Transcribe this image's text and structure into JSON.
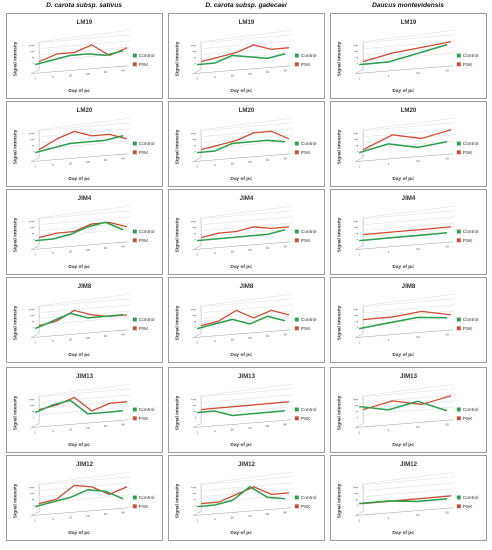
{
  "columns": [
    "D. carota subsp. sativus",
    "D. carota subsp. gadecaei",
    "Daucus montevidensis"
  ],
  "colors": {
    "control": "#2e9e4f",
    "psk": "#d04a2e"
  },
  "chart_data": [
    {
      "type": "line",
      "column": "D. carota subsp. sativus",
      "title": "LM19",
      "xlabel": "Day of pc",
      "ylabel": "Signal intensity",
      "y_ticks": [
        "****",
        "***",
        "**",
        "*"
      ],
      "x": [
        "1",
        "4",
        "10",
        "20",
        "30",
        "40"
      ],
      "ylim": [
        0,
        4
      ],
      "legend": "right",
      "series": [
        {
          "name": "Control",
          "values": [
            1,
            1.5,
            2,
            2,
            1.5,
            2
          ]
        },
        {
          "name": "PSK",
          "values": [
            1,
            2,
            2,
            3,
            1,
            2
          ]
        }
      ]
    },
    {
      "type": "line",
      "column": "D. carota subsp. gadecaei",
      "title": "LM19",
      "xlabel": "Day of pc",
      "ylabel": "Signal intensity",
      "y_ticks": [
        "****",
        "***",
        "**",
        "*"
      ],
      "x": [
        "1",
        "4",
        "10",
        "20",
        "30",
        "40"
      ],
      "ylim": [
        0,
        4
      ],
      "legend": "right",
      "series": [
        {
          "name": "Control",
          "values": [
            1,
            1,
            2,
            1.5,
            1,
            1.5
          ]
        },
        {
          "name": "PSK",
          "values": [
            1,
            1.5,
            2,
            3,
            2,
            2
          ]
        }
      ]
    },
    {
      "type": "line",
      "column": "Daucus montevidensis",
      "title": "LM19",
      "xlabel": "Day of pc",
      "ylabel": "Signal intensity",
      "y_ticks": [
        "****",
        "***",
        "**",
        "*"
      ],
      "x": [
        "1",
        "4",
        "10",
        "20"
      ],
      "ylim": [
        0,
        4
      ],
      "legend": "right",
      "series": [
        {
          "name": "Control",
          "values": [
            1,
            1,
            2,
            3
          ]
        },
        {
          "name": "PSK",
          "values": [
            1,
            2,
            2.5,
            3
          ]
        }
      ]
    },
    {
      "type": "line",
      "column": "D. carota subsp. sativus",
      "title": "LM20",
      "xlabel": "Day of pc",
      "ylabel": "Signal intensity",
      "y_ticks": [
        "****",
        "***",
        "**",
        "*"
      ],
      "x": [
        "1",
        "4",
        "10",
        "20",
        "30",
        "40"
      ],
      "ylim": [
        0,
        4
      ],
      "legend": "right",
      "series": [
        {
          "name": "Control",
          "values": [
            1,
            1.5,
            2,
            2,
            2,
            2.5
          ]
        },
        {
          "name": "PSK",
          "values": [
            1,
            2.5,
            3.5,
            2.5,
            2.5,
            1.5
          ]
        }
      ]
    },
    {
      "type": "line",
      "column": "D. carota subsp. gadecaei",
      "title": "LM20",
      "xlabel": "Day of pc",
      "ylabel": "Signal intensity",
      "y_ticks": [
        "****",
        "***",
        "**",
        "*"
      ],
      "x": [
        "1",
        "4",
        "10",
        "20",
        "30",
        "40"
      ],
      "ylim": [
        0,
        4
      ],
      "legend": "right",
      "series": [
        {
          "name": "Control",
          "values": [
            1,
            1,
            2,
            2,
            2,
            1.5
          ]
        },
        {
          "name": "PSK",
          "values": [
            1,
            1.5,
            2,
            3,
            3,
            1.5
          ]
        }
      ]
    },
    {
      "type": "line",
      "column": "Daucus montevidensis",
      "title": "LM20",
      "xlabel": "Day of pc",
      "ylabel": "Signal intensity",
      "y_ticks": [
        "****",
        "***",
        "**",
        "*"
      ],
      "x": [
        "1",
        "4",
        "10",
        "20"
      ],
      "ylim": [
        0,
        4
      ],
      "legend": "right",
      "series": [
        {
          "name": "Control",
          "values": [
            1,
            2,
            1,
            1.5
          ]
        },
        {
          "name": "PSK",
          "values": [
            1,
            3,
            2,
            3
          ]
        }
      ]
    },
    {
      "type": "line",
      "column": "D. carota subsp. sativus",
      "title": "JIM4",
      "xlabel": "Day of pc",
      "ylabel": "Signal intensity",
      "y_ticks": [
        "****",
        "***",
        "**",
        "*"
      ],
      "x": [
        "1",
        "4",
        "10",
        "20",
        "30",
        "40"
      ],
      "ylim": [
        0,
        4
      ],
      "legend": "right",
      "series": [
        {
          "name": "Control",
          "values": [
            1,
            1,
            1.5,
            2.5,
            3,
            1.5
          ]
        },
        {
          "name": "PSK",
          "values": [
            1,
            1.5,
            1.5,
            2.5,
            2.5,
            1.5
          ]
        }
      ]
    },
    {
      "type": "line",
      "column": "D. carota subsp. gadecaei",
      "title": "JIM4",
      "xlabel": "Day of pc",
      "ylabel": "Signal intensity",
      "y_ticks": [
        "****",
        "***",
        "**",
        "*"
      ],
      "x": [
        "1",
        "4",
        "10",
        "20",
        "30",
        "40"
      ],
      "ylim": [
        0,
        4
      ],
      "legend": "right",
      "series": [
        {
          "name": "Control",
          "values": [
            1,
            1,
            1,
            1,
            1,
            1.5
          ]
        },
        {
          "name": "PSK",
          "values": [
            1,
            1.5,
            1.5,
            2,
            1.5,
            1.5
          ]
        }
      ]
    },
    {
      "type": "line",
      "column": "Daucus montevidensis",
      "title": "JIM4",
      "xlabel": "Day of pc",
      "ylabel": "Signal intensity",
      "y_ticks": [
        "****",
        "***",
        "**",
        "*"
      ],
      "x": [
        "1",
        "4",
        "10",
        "20"
      ],
      "ylim": [
        0,
        4
      ],
      "legend": "right",
      "series": [
        {
          "name": "Control",
          "values": [
            1,
            1,
            1,
            1
          ]
        },
        {
          "name": "PSK",
          "values": [
            1.5,
            1.5,
            1.5,
            1.5
          ]
        }
      ]
    },
    {
      "type": "line",
      "column": "D. carota subsp. sativus",
      "title": "JIM8",
      "xlabel": "Day of pc",
      "ylabel": "Signal intensity",
      "y_ticks": [
        "****",
        "***",
        "**",
        "*"
      ],
      "x": [
        "1",
        "4",
        "10",
        "20",
        "30",
        "40"
      ],
      "ylim": [
        0,
        4
      ],
      "legend": "right",
      "series": [
        {
          "name": "Control",
          "values": [
            1,
            2,
            3,
            2,
            2,
            2
          ]
        },
        {
          "name": "PSK",
          "values": [
            1,
            1.5,
            3,
            2,
            1.5,
            1.5
          ]
        }
      ]
    },
    {
      "type": "line",
      "column": "D. carota subsp. gadecaei",
      "title": "JIM8",
      "xlabel": "Day of pc",
      "ylabel": "Signal intensity",
      "y_ticks": [
        "****",
        "***",
        "**",
        "*"
      ],
      "x": [
        "1",
        "4",
        "10",
        "20",
        "30",
        "40"
      ],
      "ylim": [
        0,
        4
      ],
      "legend": "right",
      "series": [
        {
          "name": "Control",
          "values": [
            1,
            1.5,
            2,
            1,
            2,
            1
          ]
        },
        {
          "name": "PSK",
          "values": [
            1,
            1.5,
            3,
            1.5,
            2.5,
            1.5
          ]
        }
      ]
    },
    {
      "type": "line",
      "column": "Daucus montevidensis",
      "title": "JIM8",
      "xlabel": "Day of pc",
      "ylabel": "Signal intensity",
      "y_ticks": [
        "****",
        "***",
        "**",
        "*"
      ],
      "x": [
        "1",
        "4",
        "10",
        "20"
      ],
      "ylim": [
        0,
        4
      ],
      "legend": "right",
      "series": [
        {
          "name": "Control",
          "values": [
            1,
            1.5,
            2,
            1.5
          ]
        },
        {
          "name": "PSK",
          "values": [
            2,
            2,
            2.5,
            1.5
          ]
        }
      ]
    },
    {
      "type": "line",
      "column": "D. carota subsp. sativus",
      "title": "JIM13",
      "xlabel": "Day of pc",
      "ylabel": "Signal intensity",
      "y_ticks": [
        "****",
        "***",
        "**",
        "*"
      ],
      "x": [
        "1",
        "4",
        "10",
        "20",
        "30",
        "40"
      ],
      "ylim": [
        0,
        4
      ],
      "legend": "right",
      "series": [
        {
          "name": "Control",
          "values": [
            2,
            3,
            3.5,
            1,
            1,
            1
          ]
        },
        {
          "name": "PSK",
          "values": [
            2,
            2.5,
            3.5,
            1,
            2,
            2
          ]
        }
      ]
    },
    {
      "type": "line",
      "column": "D. carota subsp. gadecaei",
      "title": "JIM13",
      "xlabel": "Day of pc",
      "ylabel": "Signal intensity",
      "y_ticks": [
        "****",
        "***",
        "**",
        "*"
      ],
      "x": [
        "1",
        "4",
        "10",
        "20",
        "30",
        "40"
      ],
      "ylim": [
        0,
        4
      ],
      "legend": "right",
      "series": [
        {
          "name": "Control",
          "values": [
            2,
            2,
            1,
            1,
            1,
            1
          ]
        },
        {
          "name": "PSK",
          "values": [
            2,
            2,
            2,
            2,
            2,
            2
          ]
        }
      ]
    },
    {
      "type": "line",
      "column": "Daucus montevidensis",
      "title": "JIM13",
      "xlabel": "Day of pc",
      "ylabel": "Signal intensity",
      "y_ticks": [
        "****",
        "***",
        "**",
        "*"
      ],
      "x": [
        "1",
        "4",
        "10",
        "20"
      ],
      "ylim": [
        0,
        4
      ],
      "legend": "right",
      "series": [
        {
          "name": "Control",
          "values": [
            3,
            2,
            3,
            1
          ]
        },
        {
          "name": "PSK",
          "values": [
            2,
            3,
            2,
            3
          ]
        }
      ]
    },
    {
      "type": "line",
      "column": "D. carota subsp. sativus",
      "title": "JIM12",
      "xlabel": "Day of pc",
      "ylabel": "Signal intensity",
      "y_ticks": [
        "****",
        "***",
        "**",
        "*"
      ],
      "x": [
        "1",
        "4",
        "10",
        "20",
        "30",
        "40"
      ],
      "ylim": [
        0,
        4
      ],
      "legend": "right",
      "series": [
        {
          "name": "Control",
          "values": [
            1,
            1.5,
            2,
            3,
            2.5,
            1
          ]
        },
        {
          "name": "PSK",
          "values": [
            1,
            1.5,
            3.5,
            3,
            1.5,
            2.5
          ]
        }
      ]
    },
    {
      "type": "line",
      "column": "D. carota subsp. gadecaei",
      "title": "JIM12",
      "xlabel": "Day of pc",
      "ylabel": "Signal intensity",
      "y_ticks": [
        "****",
        "***",
        "**",
        "*"
      ],
      "x": [
        "1",
        "4",
        "10",
        "20",
        "30",
        "40"
      ],
      "ylim": [
        0,
        4
      ],
      "legend": "right",
      "series": [
        {
          "name": "Control",
          "values": [
            1,
            1,
            1.5,
            3.5,
            1.5,
            1
          ]
        },
        {
          "name": "PSK",
          "values": [
            1,
            1,
            2,
            3,
            1.5,
            1.5
          ]
        }
      ]
    },
    {
      "type": "line",
      "column": "Daucus montevidensis",
      "title": "JIM12",
      "xlabel": "Day of pc",
      "ylabel": "Signal intensity",
      "y_ticks": [
        "****",
        "***",
        "**",
        "*"
      ],
      "x": [
        "1",
        "4",
        "10",
        "20"
      ],
      "ylim": [
        0,
        4
      ],
      "legend": "right",
      "series": [
        {
          "name": "Control",
          "values": [
            1.5,
            1.5,
            1,
            1
          ]
        },
        {
          "name": "PSK",
          "values": [
            1,
            1,
            1,
            1
          ]
        }
      ]
    }
  ]
}
